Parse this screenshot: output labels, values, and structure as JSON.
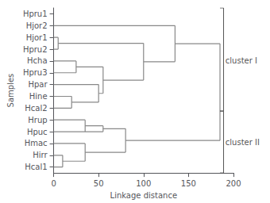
{
  "chart_data": {
    "type": "dendrogram",
    "xlabel": "Linkage distance",
    "ylabel": "Samples",
    "xlim": [
      0,
      200
    ],
    "xticks": [
      0,
      50,
      100,
      150,
      200
    ],
    "ylim": [
      -0.5,
      13.5
    ],
    "yticks": [
      {
        "value": 0,
        "label": "Hcal1"
      },
      {
        "value": 1,
        "label": "Hirr"
      },
      {
        "value": 2,
        "label": "Hmac"
      },
      {
        "value": 3,
        "label": "Hpuc"
      },
      {
        "value": 4,
        "label": "Hrup"
      },
      {
        "value": 5,
        "label": "Hcal2"
      },
      {
        "value": 6,
        "label": "Hine"
      },
      {
        "value": 7,
        "label": "Hpar"
      },
      {
        "value": 8,
        "label": "Hpru3"
      },
      {
        "value": 9,
        "label": "Hcha"
      },
      {
        "value": 10,
        "label": "Hpru2"
      },
      {
        "value": 11,
        "label": "Hjor1"
      },
      {
        "value": 12,
        "label": "Hjor2"
      },
      {
        "value": 13,
        "label": "Hpru1"
      }
    ],
    "grid": false,
    "color": "#888888",
    "segments": [
      {
        "type": "H",
        "y": 0,
        "x1": 0,
        "x2": 10
      },
      {
        "type": "H",
        "y": 1,
        "x1": 0,
        "x2": 10
      },
      {
        "type": "V",
        "y1": 0,
        "y2": 1,
        "x": 10
      },
      {
        "type": "H",
        "y": 0.5,
        "x1": 10,
        "x2": 35
      },
      {
        "type": "H",
        "y": 2,
        "x1": 0,
        "x2": 35
      },
      {
        "type": "V",
        "y1": 0.5,
        "y2": 2,
        "x": 35
      },
      {
        "type": "H",
        "y": 1.25,
        "x1": 35,
        "x2": 80
      },
      {
        "type": "H",
        "y": 3,
        "x1": 0,
        "x2": 55
      },
      {
        "type": "H",
        "y": 4,
        "x1": 0,
        "x2": 35
      },
      {
        "type": "V",
        "y1": 3,
        "y2": 4,
        "x": 35
      },
      {
        "type": "H",
        "y": 3.5,
        "x1": 35,
        "x2": 55
      },
      {
        "type": "V",
        "y1": 3.5,
        "y2": 3,
        "x": 55
      },
      {
        "type": "H",
        "y": 3.25,
        "x1": 55,
        "x2": 80
      },
      {
        "type": "V",
        "y1": 1.25,
        "y2": 3.25,
        "x": 80
      },
      {
        "type": "H",
        "y": 2.25,
        "x1": 80,
        "x2": 185
      },
      {
        "type": "H",
        "y": 5,
        "x1": 0,
        "x2": 20
      },
      {
        "type": "H",
        "y": 6,
        "x1": 0,
        "x2": 20
      },
      {
        "type": "V",
        "y1": 5,
        "y2": 6,
        "x": 20
      },
      {
        "type": "H",
        "y": 5.5,
        "x1": 20,
        "x2": 50
      },
      {
        "type": "H",
        "y": 7,
        "x1": 0,
        "x2": 50
      },
      {
        "type": "V",
        "y1": 5.5,
        "y2": 7,
        "x": 50
      },
      {
        "type": "H",
        "y": 6.25,
        "x1": 50,
        "x2": 55
      },
      {
        "type": "H",
        "y": 8,
        "x1": 0,
        "x2": 25
      },
      {
        "type": "H",
        "y": 9,
        "x1": 0,
        "x2": 25
      },
      {
        "type": "V",
        "y1": 8,
        "y2": 9,
        "x": 25
      },
      {
        "type": "H",
        "y": 8.5,
        "x1": 25,
        "x2": 55
      },
      {
        "type": "V",
        "y1": 6.25,
        "y2": 8.5,
        "x": 55
      },
      {
        "type": "H",
        "y": 7.375,
        "x1": 55,
        "x2": 100
      },
      {
        "type": "H",
        "y": 10,
        "x1": 0,
        "x2": 5
      },
      {
        "type": "H",
        "y": 11,
        "x1": 0,
        "x2": 5
      },
      {
        "type": "V",
        "y1": 10,
        "y2": 11,
        "x": 5
      },
      {
        "type": "H",
        "y": 10.5,
        "x1": 5,
        "x2": 100
      },
      {
        "type": "V",
        "y1": 7.375,
        "y2": 10.5,
        "x": 100
      },
      {
        "type": "H",
        "y": 8.9375,
        "x1": 100,
        "x2": 135
      },
      {
        "type": "H",
        "y": 12,
        "x1": 0,
        "x2": 135
      },
      {
        "type": "V",
        "y1": 8.9375,
        "y2": 12,
        "x": 135
      },
      {
        "type": "H",
        "y": 10.47,
        "x1": 135,
        "x2": 185
      },
      {
        "type": "V",
        "y1": 2.25,
        "y2": 10.47,
        "x": 185
      }
    ],
    "brackets": [
      {
        "text": "cluster II",
        "x": 189,
        "tick_x": 185,
        "y1": -0.5,
        "y2": 4.75,
        "label_x": 191,
        "label_y": 2.125
      },
      {
        "text": "cluster I",
        "x": 189,
        "tick_x": 185,
        "y1": 4.75,
        "y2": 13.5,
        "label_x": 191,
        "label_y": 9.0
      }
    ],
    "bracket_color": "#555555",
    "text_color": "#222222"
  }
}
